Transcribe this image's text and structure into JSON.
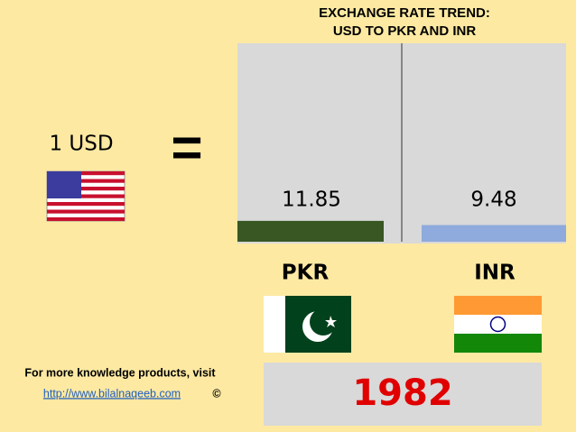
{
  "chart_data": {
    "type": "bar",
    "title": [
      "EXCHANGE RATE TREND:",
      "USD TO PKR AND INR"
    ],
    "lead": "1 USD",
    "equals": "=",
    "categories": [
      "PKR",
      "INR"
    ],
    "values": [
      11.85,
      9.48
    ],
    "colors": [
      "#385723",
      "#8faadc"
    ],
    "year": "1982",
    "footer": {
      "text": "For more knowledge products, visit",
      "link": "http://www.bilalnaqeeb.com",
      "mark": "©"
    }
  }
}
